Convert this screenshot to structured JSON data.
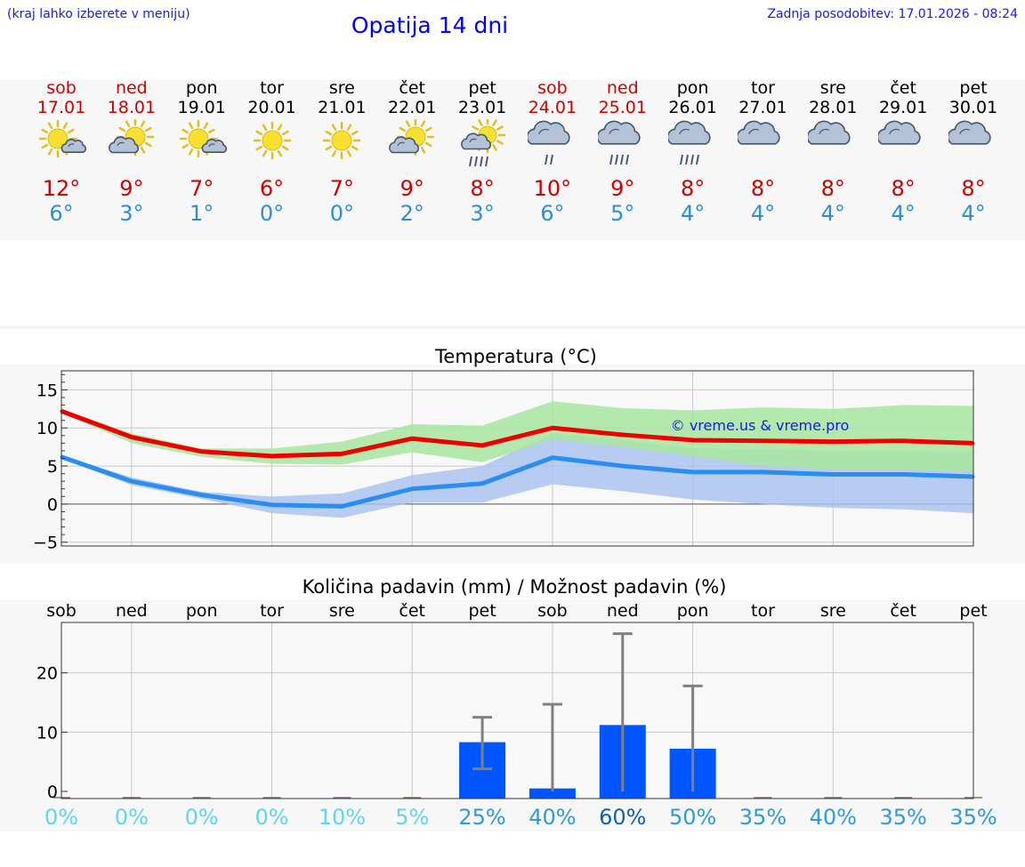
{
  "header": {
    "hint": "(kraj lahko izberete v meniju)",
    "title": "Opatija 14 dni",
    "updated": "Zadnja posodobitev: 17.01.2026 - 08:24"
  },
  "colors": {
    "weekend": "#cc0000",
    "weekday": "#000000",
    "tmax": "#cc0000",
    "tmin": "#2a8de0",
    "max_line": "#ee0000",
    "min_line": "#2a8df0",
    "max_band": "#a8e6a0",
    "min_band": "#a8c0f0",
    "bar": "#0055ff",
    "error": "#808080"
  },
  "forecast": [
    {
      "day": "sob",
      "date": "17.01",
      "weekend": true,
      "icon": "sun-cloud-icon",
      "tmax": "12°",
      "tmin": "6°"
    },
    {
      "day": "ned",
      "date": "18.01",
      "weekend": true,
      "icon": "cloud-sun-icon",
      "tmax": "9°",
      "tmin": "3°"
    },
    {
      "day": "pon",
      "date": "19.01",
      "weekend": false,
      "icon": "sun-cloud-icon",
      "tmax": "7°",
      "tmin": "1°"
    },
    {
      "day": "tor",
      "date": "20.01",
      "weekend": false,
      "icon": "sun-icon",
      "tmax": "6°",
      "tmin": "0°"
    },
    {
      "day": "sre",
      "date": "21.01",
      "weekend": false,
      "icon": "sun-icon",
      "tmax": "7°",
      "tmin": "0°"
    },
    {
      "day": "čet",
      "date": "22.01",
      "weekend": false,
      "icon": "cloud-sun-icon",
      "tmax": "9°",
      "tmin": "2°"
    },
    {
      "day": "pet",
      "date": "23.01",
      "weekend": false,
      "icon": "rain-sun-cloud-icon",
      "tmax": "8°",
      "tmin": "3°"
    },
    {
      "day": "sob",
      "date": "24.01",
      "weekend": true,
      "icon": "light-rain-icon",
      "tmax": "10°",
      "tmin": "6°"
    },
    {
      "day": "ned",
      "date": "25.01",
      "weekend": true,
      "icon": "rain-icon",
      "tmax": "9°",
      "tmin": "5°"
    },
    {
      "day": "pon",
      "date": "26.01",
      "weekend": false,
      "icon": "rain-icon",
      "tmax": "8°",
      "tmin": "4°"
    },
    {
      "day": "tor",
      "date": "27.01",
      "weekend": false,
      "icon": "cloud-icon",
      "tmax": "8°",
      "tmin": "4°"
    },
    {
      "day": "sre",
      "date": "28.01",
      "weekend": false,
      "icon": "cloud-icon",
      "tmax": "8°",
      "tmin": "4°"
    },
    {
      "day": "čet",
      "date": "29.01",
      "weekend": false,
      "icon": "cloud-icon",
      "tmax": "8°",
      "tmin": "4°"
    },
    {
      "day": "pet",
      "date": "30.01",
      "weekend": false,
      "icon": "cloud-icon",
      "tmax": "8°",
      "tmin": "4°"
    }
  ],
  "chart_data": [
    {
      "type": "line",
      "title": "Temperatura (°C)",
      "watermark": "© vreme.us & vreme.pro",
      "x": [
        "17.01",
        "18.01",
        "19.01",
        "20.01",
        "21.01",
        "22.01",
        "23.01",
        "24.01",
        "25.01",
        "26.01",
        "27.01",
        "28.01",
        "29.01",
        "30.01"
      ],
      "ylim": [
        -5.5,
        17.5
      ],
      "yticks": [
        -5,
        0,
        5,
        10,
        15
      ],
      "ytick_labels": [
        "−5",
        "0",
        "5",
        "10",
        "15"
      ],
      "series": [
        {
          "name": "max",
          "values": [
            12.2,
            8.8,
            6.9,
            6.3,
            6.6,
            8.6,
            7.7,
            10.0,
            9.1,
            8.4,
            8.3,
            8.2,
            8.3,
            8.0
          ],
          "band_low": [
            12.0,
            8.0,
            6.2,
            5.3,
            5.2,
            6.8,
            5.5,
            8.5,
            7.5,
            6.3,
            5.0,
            4.5,
            4.5,
            4.3
          ],
          "band_high": [
            12.4,
            9.3,
            7.3,
            7.3,
            8.2,
            10.5,
            10.3,
            13.5,
            12.6,
            12.3,
            12.7,
            12.5,
            13.0,
            12.9
          ]
        },
        {
          "name": "min",
          "values": [
            6.2,
            3.0,
            1.2,
            -0.1,
            -0.3,
            2.0,
            2.7,
            6.1,
            5.0,
            4.2,
            4.2,
            3.9,
            3.9,
            3.6
          ],
          "band_low": [
            6.0,
            2.5,
            0.7,
            -1.2,
            -1.8,
            0.2,
            0.2,
            2.6,
            1.7,
            0.6,
            0.0,
            -0.5,
            -0.7,
            -1.2
          ],
          "band_high": [
            6.4,
            3.5,
            1.6,
            1.0,
            1.4,
            3.8,
            5.0,
            9.3,
            8.4,
            7.3,
            7.2,
            7.0,
            7.0,
            6.9
          ]
        }
      ]
    },
    {
      "type": "bar",
      "title": "Količina padavin (mm) / Možnost padavin (%)",
      "categories": [
        "sob",
        "ned",
        "pon",
        "tor",
        "sre",
        "čet",
        "pet",
        "sob",
        "ned",
        "pon",
        "tor",
        "sre",
        "čet",
        "pet"
      ],
      "values": [
        0,
        0,
        0,
        0,
        0,
        0,
        8.3,
        0.5,
        11.2,
        7.2,
        0,
        0,
        0,
        0
      ],
      "error_high": [
        0,
        0,
        0,
        0,
        0,
        0,
        12.5,
        14.7,
        26.6,
        17.8,
        0,
        0,
        0,
        0
      ],
      "error_low": [
        0,
        0,
        0,
        0,
        0,
        0,
        3.8,
        0,
        0,
        0,
        0,
        0,
        0,
        0
      ],
      "ylim": [
        -1.2,
        28.5
      ],
      "yticks": [
        0,
        10,
        20
      ],
      "ytick_labels": [
        "0",
        "10",
        "20"
      ],
      "probability": [
        "0%",
        "0%",
        "0%",
        "0%",
        "10%",
        "5%",
        "25%",
        "40%",
        "60%",
        "50%",
        "35%",
        "40%",
        "35%",
        "35%"
      ],
      "probability_colors": [
        "#5fd6ea",
        "#5fd6ea",
        "#5fd6ea",
        "#5fd6ea",
        "#5fd6ea",
        "#5fd6ea",
        "#2f9ad8",
        "#2f9ad8",
        "#1060b0",
        "#2f9ad8",
        "#2f9ad8",
        "#2f9ad8",
        "#2f9ad8",
        "#2f9ad8"
      ]
    }
  ]
}
